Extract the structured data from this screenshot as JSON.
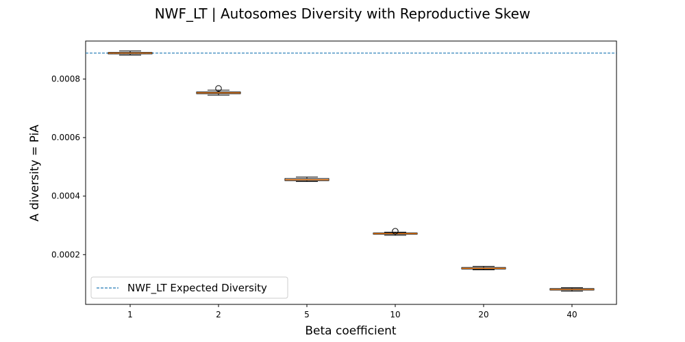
{
  "chart_data": {
    "type": "box",
    "title": "NWF_LT | Autosomes Diversity with Reproductive Skew",
    "xlabel": "Beta coefficient",
    "ylabel": "A diversity = PiA",
    "categories": [
      "1",
      "2",
      "5",
      "10",
      "20",
      "40"
    ],
    "ylim": [
      3e-05,
      0.00093
    ],
    "yticks": [
      0.0002,
      0.0004,
      0.0006,
      0.0008
    ],
    "ytick_labels": [
      "0.0002",
      "0.0004",
      "0.0006",
      "0.0008"
    ],
    "boxes": [
      {
        "category": "1",
        "whisker_low": 0.000882,
        "q1": 0.000886,
        "median": 0.000889,
        "q3": 0.000891,
        "whisker_high": 0.000896,
        "outliers": []
      },
      {
        "category": "2",
        "whisker_low": 0.000745,
        "q1": 0.00075,
        "median": 0.000753,
        "q3": 0.000756,
        "whisker_high": 0.000762,
        "outliers": [
          0.000768
        ]
      },
      {
        "category": "5",
        "whisker_low": 0.00045,
        "q1": 0.000453,
        "median": 0.000456,
        "q3": 0.00046,
        "whisker_high": 0.000465,
        "outliers": []
      },
      {
        "category": "10",
        "whisker_low": 0.000266,
        "q1": 0.00027,
        "median": 0.000272,
        "q3": 0.000274,
        "whisker_high": 0.000277,
        "outliers": [
          0.00028
        ]
      },
      {
        "category": "20",
        "whisker_low": 0.000148,
        "q1": 0.000151,
        "median": 0.000153,
        "q3": 0.000156,
        "whisker_high": 0.00016,
        "outliers": []
      },
      {
        "category": "40",
        "whisker_low": 7.5e-05,
        "q1": 7.9e-05,
        "median": 8.1e-05,
        "q3": 8.4e-05,
        "whisker_high": 8.7e-05,
        "outliers": []
      }
    ],
    "reference_line": {
      "value": 0.000889,
      "label": "NWF_LT Expected Diversity",
      "style": "dashed",
      "color": "#1f77b4"
    },
    "legend": {
      "position": "lower-left",
      "entries": [
        "NWF_LT Expected Diversity"
      ]
    },
    "median_color": "#ff7f0e",
    "grid": false
  }
}
